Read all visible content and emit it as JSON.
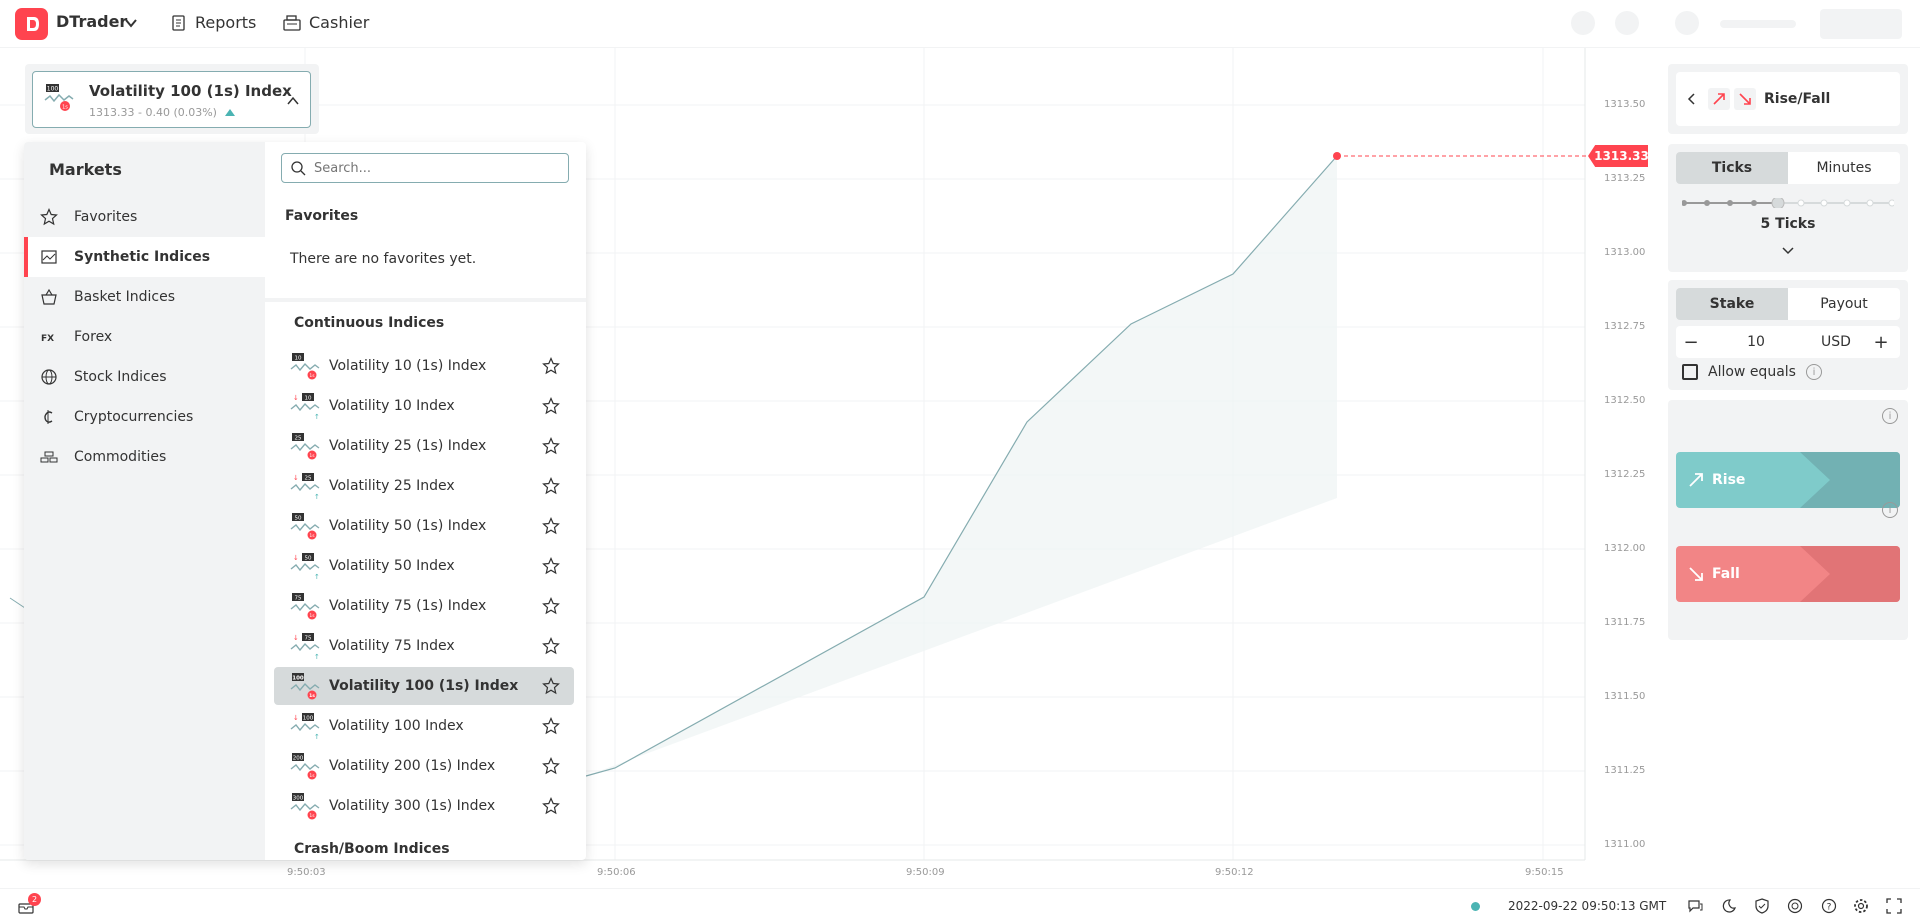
{
  "header": {
    "app_name": "DTrader",
    "nav": [
      {
        "label": "Reports",
        "icon": "reports-icon"
      },
      {
        "label": "Cashier",
        "icon": "cashier-icon"
      }
    ]
  },
  "market_selector": {
    "title": "Volatility 100 (1s) Index",
    "subtitle": "1313.33 - 0.40 (0.03%)"
  },
  "markets": {
    "heading": "Markets",
    "categories": [
      {
        "label": "Favorites",
        "icon": "star-icon"
      },
      {
        "label": "Synthetic Indices",
        "icon": "synthetic-icon",
        "active": true
      },
      {
        "label": "Basket Indices",
        "icon": "basket-icon"
      },
      {
        "label": "Forex",
        "icon": "forex-icon"
      },
      {
        "label": "Stock Indices",
        "icon": "globe-icon"
      },
      {
        "label": "Cryptocurrencies",
        "icon": "crypto-icon"
      },
      {
        "label": "Commodities",
        "icon": "commodities-icon"
      }
    ],
    "search_placeholder": "Search...",
    "favorites_title": "Favorites",
    "favorites_empty": "There are no favorites yet.",
    "continuous_title": "Continuous Indices",
    "items": [
      {
        "label": "Volatility 10 (1s) Index",
        "badge": "10"
      },
      {
        "label": "Volatility 10 Index",
        "badge": "10"
      },
      {
        "label": "Volatility 25 (1s) Index",
        "badge": "25"
      },
      {
        "label": "Volatility 25 Index",
        "badge": "25"
      },
      {
        "label": "Volatility 50 (1s) Index",
        "badge": "50"
      },
      {
        "label": "Volatility 50 Index",
        "badge": "50"
      },
      {
        "label": "Volatility 75 (1s) Index",
        "badge": "75"
      },
      {
        "label": "Volatility 75 Index",
        "badge": "75"
      },
      {
        "label": "Volatility 100 (1s) Index",
        "badge": "100",
        "active": true
      },
      {
        "label": "Volatility 100 Index",
        "badge": "100"
      },
      {
        "label": "Volatility 200 (1s) Index",
        "badge": "200"
      },
      {
        "label": "Volatility 300 (1s) Index",
        "badge": "300"
      }
    ],
    "crash_title": "Crash/Boom Indices"
  },
  "chart": {
    "current_price": "1313.33",
    "y_ticks": [
      "1313.50",
      "1313.25",
      "1313.00",
      "1312.75",
      "1312.50",
      "1312.25",
      "1312.00",
      "1311.75",
      "1311.50",
      "1311.25",
      "1311.00"
    ],
    "x_ticks": [
      "9:50:03",
      "9:50:06",
      "9:50:09",
      "9:50:12",
      "9:50:15"
    ],
    "line_color": "#85acb0",
    "accent": "#ff444f"
  },
  "trade": {
    "contract_type": "Rise/Fall",
    "duration_tabs": [
      "Ticks",
      "Minutes"
    ],
    "duration_label": "5 Ticks",
    "stake_tabs": [
      "Stake",
      "Payout"
    ],
    "stake_value": "10",
    "currency": "USD",
    "allow_equals": "Allow equals",
    "rise_label": "Rise",
    "fall_label": "Fall",
    "rise_color": "#7fcbca",
    "fall_color": "#f28586"
  },
  "footer": {
    "notifications_count": "2",
    "time": "2022-09-22 09:50:13 GMT"
  }
}
